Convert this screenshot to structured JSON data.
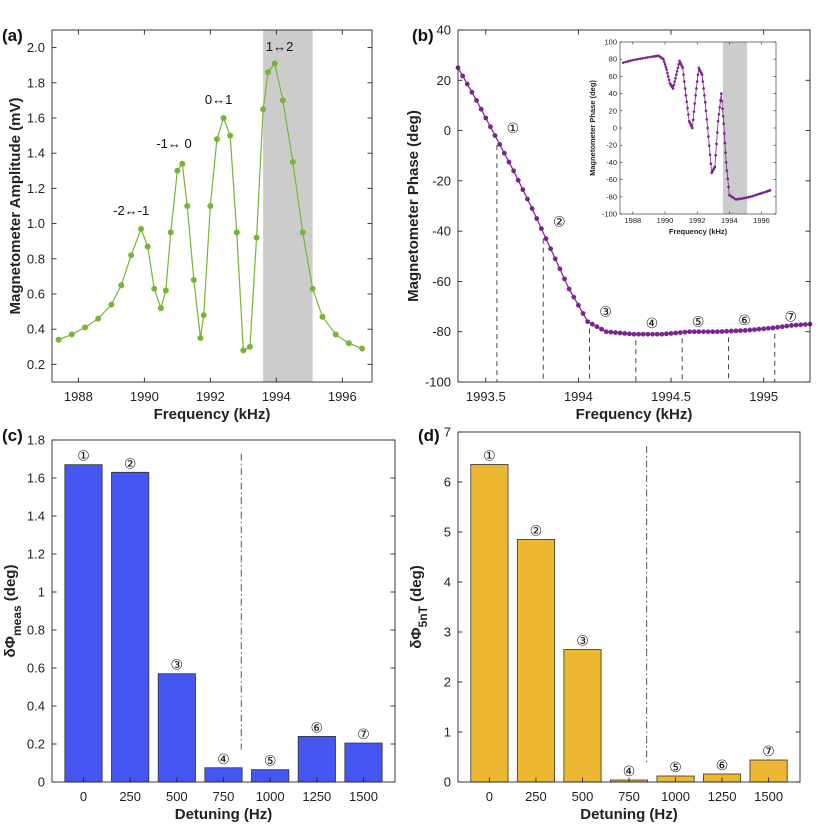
{
  "chart_data": [
    {
      "panel": "(a)",
      "type": "line",
      "xlabel": "Frequency (kHz)",
      "ylabel": "Magnetometer Amplitude (mV)",
      "xlim": [
        1987.2,
        1996.9
      ],
      "ylim": [
        0.1,
        2.1
      ],
      "xticks": [
        1988,
        1990,
        1992,
        1994,
        1996
      ],
      "yticks": [
        0.2,
        0.4,
        0.6,
        0.8,
        1.0,
        1.2,
        1.4,
        1.6,
        1.8,
        2.0
      ],
      "ytick_labels": [
        "0.2",
        "0.4",
        "0.6",
        "0.8",
        "1.0",
        "1.2",
        "1.4",
        "1.6",
        "1.8",
        "2.0"
      ],
      "shaded_region": [
        1993.6,
        1995.1
      ],
      "color": "#77b539",
      "shade_color": "#cccccc",
      "x": [
        1987.4,
        1987.8,
        1988.2,
        1988.6,
        1989.0,
        1989.3,
        1989.6,
        1989.9,
        1990.1,
        1990.3,
        1990.5,
        1990.65,
        1990.8,
        1991.0,
        1991.15,
        1991.3,
        1991.5,
        1991.7,
        1991.8,
        1992.0,
        1992.2,
        1992.4,
        1992.6,
        1992.8,
        1993.0,
        1993.2,
        1993.4,
        1993.6,
        1993.75,
        1993.95,
        1994.2,
        1994.5,
        1994.8,
        1995.1,
        1995.4,
        1995.8,
        1996.2,
        1996.6
      ],
      "y": [
        0.34,
        0.37,
        0.41,
        0.46,
        0.54,
        0.65,
        0.82,
        0.97,
        0.87,
        0.63,
        0.52,
        0.62,
        0.95,
        1.3,
        1.34,
        1.1,
        0.68,
        0.35,
        0.48,
        1.1,
        1.48,
        1.6,
        1.5,
        0.95,
        0.28,
        0.3,
        0.92,
        1.65,
        1.86,
        1.91,
        1.7,
        1.35,
        0.95,
        0.63,
        0.47,
        0.37,
        0.32,
        0.29
      ],
      "annotations": [
        {
          "text": "-2↔-1",
          "x": 1989.6,
          "y": 1.05
        },
        {
          "text": "-1↔ 0",
          "x": 1990.9,
          "y": 1.43
        },
        {
          "text": "0↔1",
          "x": 1992.25,
          "y": 1.68
        },
        {
          "text": "1↔2",
          "x": 1994.1,
          "y": 1.98
        }
      ]
    },
    {
      "panel": "(b)",
      "type": "line",
      "xlabel": "Frequency (kHz)",
      "ylabel": "Magnetometer Phase (deg)",
      "xlim": [
        1993.35,
        1995.25
      ],
      "ylim": [
        -100,
        40
      ],
      "xticks": [
        1993.5,
        1994,
        1994.5,
        1995
      ],
      "xtick_labels": [
        "1993.5",
        "1994",
        "1994.5",
        "1995"
      ],
      "yticks": [
        -100,
        -80,
        -60,
        -40,
        -20,
        0,
        20,
        40
      ],
      "color": "#7b238e",
      "x": [
        1993.35,
        1993.45,
        1993.55,
        1993.65,
        1993.75,
        1993.85,
        1993.95,
        1994.05,
        1994.15,
        1994.3,
        1994.45,
        1994.6,
        1994.75,
        1994.9,
        1995.05,
        1995.15,
        1995.25
      ],
      "y": [
        25,
        12,
        -2,
        -16,
        -31,
        -47,
        -63,
        -76,
        -80,
        -81,
        -81,
        -80,
        -80,
        -79.5,
        -78.5,
        -77.5,
        -77
      ],
      "markers": [
        {
          "label": "①",
          "x": 1993.56
        },
        {
          "label": "②",
          "x": 1993.81
        },
        {
          "label": "③",
          "x": 1994.06
        },
        {
          "label": "④",
          "x": 1994.31
        },
        {
          "label": "⑤",
          "x": 1994.56
        },
        {
          "label": "⑥",
          "x": 1994.81
        },
        {
          "label": "⑦",
          "x": 1995.06
        }
      ],
      "inset": {
        "xlabel": "Frequency (kHz)",
        "ylabel": "Magnetometer Phase (deg)",
        "xlim": [
          1987.2,
          1996.9
        ],
        "ylim": [
          -100,
          100
        ],
        "xticks": [
          1988,
          1990,
          1992,
          1994,
          1996
        ],
        "yticks": [
          -100,
          -80,
          -60,
          -40,
          -20,
          0,
          20,
          40,
          60,
          80,
          100
        ],
        "shaded_region": [
          1993.6,
          1995.1
        ],
        "x": [
          1987.4,
          1988.0,
          1988.6,
          1989.2,
          1989.6,
          1989.9,
          1990.1,
          1990.3,
          1990.5,
          1990.7,
          1990.9,
          1991.1,
          1991.3,
          1991.5,
          1991.7,
          1991.9,
          1992.1,
          1992.3,
          1992.5,
          1992.7,
          1992.9,
          1993.1,
          1993.3,
          1993.5,
          1993.65,
          1993.8,
          1994.0,
          1994.4,
          1994.8,
          1995.3,
          1995.8,
          1996.3,
          1996.6
        ],
        "y": [
          76,
          79,
          81,
          83,
          84,
          80,
          68,
          52,
          46,
          62,
          78,
          70,
          38,
          8,
          0,
          38,
          70,
          62,
          30,
          -10,
          -52,
          -45,
          8,
          40,
          5,
          -40,
          -78,
          -83,
          -82,
          -80,
          -77,
          -74,
          -72
        ]
      }
    },
    {
      "panel": "(c)",
      "type": "bar",
      "xlabel": "Detuning (Hz)",
      "ylabel": "δΦ meas (deg)",
      "ylabel_main": "δΦ",
      "ylabel_sub": "meas",
      "ylabel_unit": " (deg)",
      "categories": [
        "0",
        "250",
        "500",
        "750",
        "1000",
        "1250",
        "1500"
      ],
      "values": [
        1.67,
        1.63,
        0.57,
        0.075,
        0.065,
        0.24,
        0.205
      ],
      "bar_labels": [
        "①",
        "②",
        "③",
        "④",
        "⑤",
        "⑥",
        "⑦"
      ],
      "ylim": [
        0,
        1.8
      ],
      "yticks": [
        0,
        0.2,
        0.4,
        0.6,
        0.8,
        1.0,
        1.2,
        1.4,
        1.6,
        1.8
      ],
      "ytick_labels": [
        "0",
        "0.2",
        "0.4",
        "0.6",
        "0.8",
        "1",
        "1.2",
        "1.4",
        "1.6",
        "1.8"
      ],
      "vline_between": [
        3,
        4
      ],
      "color": "#4656f1"
    },
    {
      "panel": "(d)",
      "type": "bar",
      "xlabel": "Detuning (Hz)",
      "ylabel": "δΦ 5nT (deg)",
      "ylabel_main": "δΦ",
      "ylabel_sub": "5nT",
      "ylabel_unit": " (deg)",
      "categories": [
        "0",
        "250",
        "500",
        "750",
        "1000",
        "1250",
        "1500"
      ],
      "values": [
        6.35,
        4.85,
        2.65,
        0.04,
        0.12,
        0.16,
        0.44
      ],
      "bar_labels": [
        "①",
        "②",
        "③",
        "④",
        "⑤",
        "⑥",
        "⑦"
      ],
      "ylim": [
        0,
        7
      ],
      "yticks": [
        0,
        1,
        2,
        3,
        4,
        5,
        6,
        7
      ],
      "ytick_labels": [
        "0",
        "1",
        "2",
        "3",
        "4",
        "5",
        "6",
        "7"
      ],
      "vline_between": [
        3,
        4
      ],
      "color": "#ecb731"
    }
  ]
}
